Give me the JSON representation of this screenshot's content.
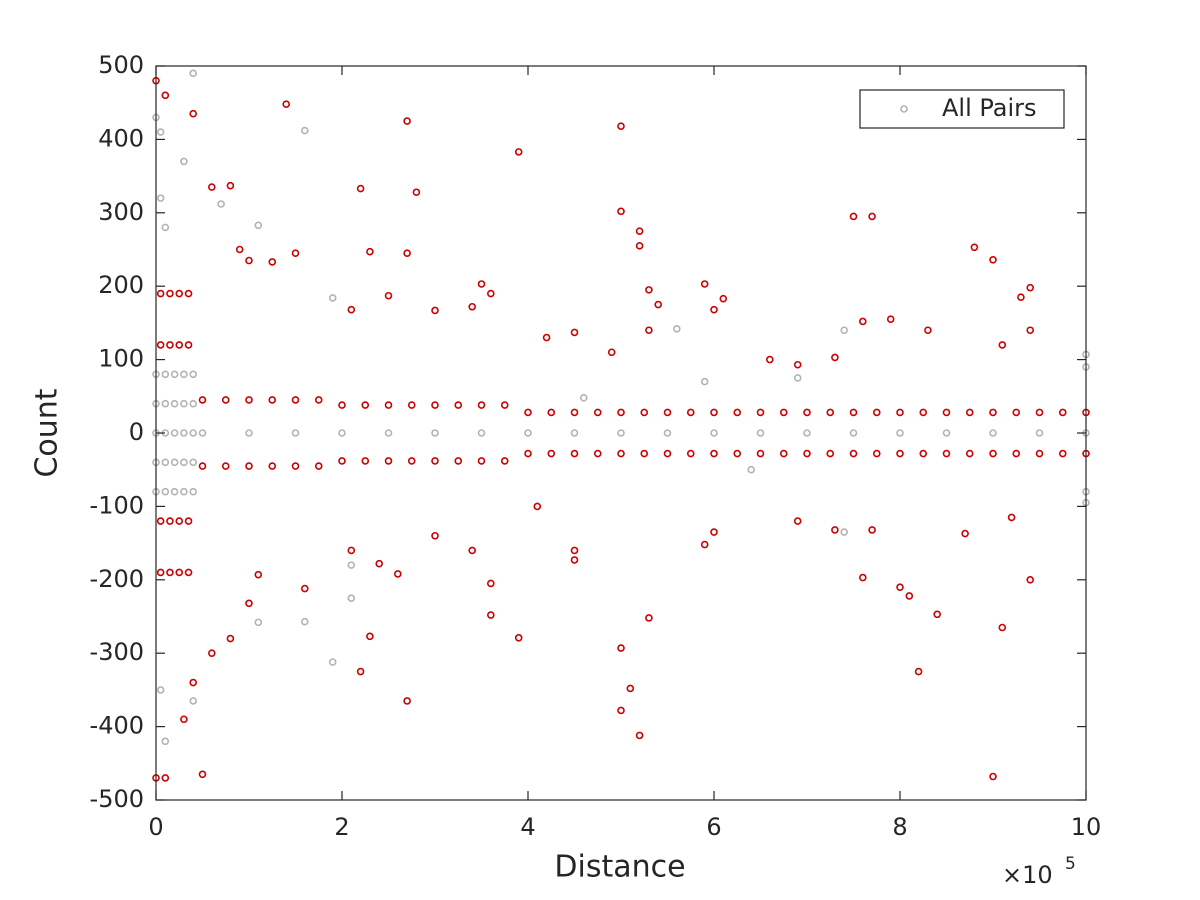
{
  "chart_data": {
    "type": "scatter",
    "x_label": "Distance",
    "y_label": "Count",
    "x_multiplier": {
      "base": "×10",
      "exponent": "5"
    },
    "xlim": [
      0,
      10
    ],
    "ylim": [
      -500,
      500
    ],
    "xticks": [
      0,
      2,
      4,
      6,
      8,
      10
    ],
    "yticks": [
      -500,
      -400,
      -300,
      -200,
      -100,
      0,
      100,
      200,
      300,
      400,
      500
    ],
    "grid": false,
    "legend": "top-right",
    "series": [
      {
        "name": "All Pairs",
        "color": "#b3b3b3",
        "x": [
          0,
          0,
          0,
          0,
          0,
          0.1,
          0.1,
          0.1,
          0.1,
          0.1,
          0.2,
          0.2,
          0.2,
          0.2,
          0.2,
          0.3,
          0.3,
          0.3,
          0.3,
          0.3,
          0.4,
          0.4,
          0.4,
          0.4,
          0.4,
          0.5,
          1,
          1.5,
          2,
          2.5,
          3,
          3.5,
          4,
          4.5,
          5,
          5.5,
          6,
          6.5,
          7,
          7.5,
          8,
          8.5,
          9,
          9.5,
          10,
          0,
          0.05,
          0.4,
          0.3,
          0.05,
          0.1,
          1.1,
          1.6,
          1.9,
          0.7,
          0.05,
          0.1,
          0.4,
          1.9,
          1.6,
          1.1,
          2.1,
          2.1,
          5.6,
          7.4,
          7.4,
          10,
          10,
          10,
          10,
          6.9,
          6.4,
          5.9,
          4.6
        ],
        "values": [
          -80,
          -40,
          0,
          40,
          80,
          -80,
          -40,
          0,
          40,
          80,
          -80,
          -40,
          0,
          40,
          80,
          -80,
          -40,
          0,
          40,
          80,
          -80,
          -40,
          0,
          40,
          80,
          0,
          0,
          0,
          0,
          0,
          0,
          0,
          0,
          0,
          0,
          0,
          0,
          0,
          0,
          0,
          0,
          0,
          0,
          0,
          0,
          430,
          410,
          490,
          370,
          320,
          280,
          283,
          412,
          184,
          312,
          -350,
          -420,
          -365,
          -312,
          -257,
          -258,
          -225,
          -180,
          142,
          140,
          -135,
          107,
          90,
          -95,
          -80,
          75,
          -50,
          70,
          48
        ]
      },
      {
        "color": "#cc0000",
        "x": [
          0.5,
          0.5,
          0.75,
          0.75,
          1,
          1,
          1.25,
          1.25,
          1.5,
          1.5,
          1.75,
          1.75,
          2,
          2,
          2.25,
          2.25,
          2.5,
          2.5,
          2.75,
          2.75,
          3,
          3,
          3.25,
          3.25,
          3.5,
          3.5,
          3.75,
          3.75,
          4,
          4,
          4.25,
          4.25,
          4.5,
          4.5,
          4.75,
          4.75,
          5,
          5,
          5.25,
          5.25,
          5.5,
          5.5,
          5.75,
          5.75,
          6,
          6,
          6.25,
          6.25,
          6.5,
          6.5,
          6.75,
          6.75,
          7,
          7,
          7.25,
          7.25,
          7.5,
          7.5,
          7.75,
          7.75,
          8,
          8,
          8.25,
          8.25,
          8.5,
          8.5,
          8.75,
          8.75,
          9,
          9,
          9.25,
          9.25,
          9.5,
          9.5,
          9.75,
          9.75,
          10,
          10,
          0.05,
          0.05,
          0.05,
          0.05,
          0.15,
          0.15,
          0.15,
          0.15,
          0.25,
          0.25,
          0.25,
          0.25,
          0.35,
          0.35,
          0.35,
          0.35,
          0,
          0.1,
          0.4,
          1.4,
          2.7,
          5,
          3.9,
          2.2,
          2.8,
          0.8,
          0.6,
          7.5,
          7.7,
          5,
          5.2,
          5.2,
          2.3,
          2.7,
          8.8,
          9,
          5.9,
          6.1,
          6,
          5.3,
          3.5,
          3.6,
          2.5,
          9.4,
          9.3,
          1.5,
          1.25,
          5.4,
          3.4,
          2.1,
          4.5,
          7.6,
          7.9,
          8.3,
          9.4,
          9.1,
          7.3,
          6.6,
          6.9,
          4.9,
          5.3,
          3,
          4.2,
          1,
          0.9,
          0.5,
          2.7,
          5,
          5.2,
          5.1,
          5,
          5.3,
          3.9,
          3.6,
          2.3,
          2.2,
          9,
          9.1,
          8.2,
          8.4,
          9.4,
          8,
          8.1,
          7.6,
          4.5,
          4.5,
          5.9,
          6,
          3.6,
          3.4,
          3,
          2.6,
          2.4,
          1.6,
          1.1,
          1,
          0.8,
          0.6,
          0.4,
          0.3,
          0.1,
          0,
          7.3,
          7.7,
          8.7,
          9.2,
          6.9,
          2.1,
          4.1
        ],
        "values": [
          45,
          -45,
          45,
          -45,
          45,
          -45,
          45,
          -45,
          45,
          -45,
          45,
          -45,
          38,
          -38,
          38,
          -38,
          38,
          -38,
          38,
          -38,
          38,
          -38,
          38,
          -38,
          38,
          -38,
          38,
          -38,
          28,
          -28,
          28,
          -28,
          28,
          -28,
          28,
          -28,
          28,
          -28,
          28,
          -28,
          28,
          -28,
          28,
          -28,
          28,
          -28,
          28,
          -28,
          28,
          -28,
          28,
          -28,
          28,
          -28,
          28,
          -28,
          28,
          -28,
          28,
          -28,
          28,
          -28,
          28,
          -28,
          28,
          -28,
          28,
          -28,
          28,
          -28,
          28,
          -28,
          28,
          -28,
          28,
          -28,
          28,
          -28,
          120,
          -120,
          190,
          -190,
          120,
          -120,
          190,
          -190,
          120,
          -120,
          190,
          -190,
          120,
          -120,
          190,
          -190,
          480,
          460,
          435,
          448,
          425,
          418,
          383,
          333,
          328,
          337,
          335,
          295,
          295,
          302,
          275,
          255,
          247,
          245,
          253,
          236,
          203,
          183,
          168,
          195,
          203,
          190,
          187,
          198,
          185,
          245,
          233,
          175,
          172,
          168,
          137,
          152,
          155,
          140,
          140,
          120,
          103,
          100,
          93,
          110,
          140,
          167,
          130,
          235,
          250,
          -465,
          -365,
          -378,
          -412,
          -348,
          -293,
          -252,
          -279,
          -248,
          -277,
          -325,
          -468,
          -265,
          -325,
          -247,
          -200,
          -210,
          -222,
          -197,
          -160,
          -173,
          -152,
          -135,
          -205,
          -160,
          -140,
          -192,
          -178,
          -212,
          -193,
          -232,
          -280,
          -300,
          -340,
          -390,
          -470,
          -470,
          -132,
          -132,
          -137,
          -115,
          -120,
          -160,
          -100
        ]
      }
    ]
  }
}
